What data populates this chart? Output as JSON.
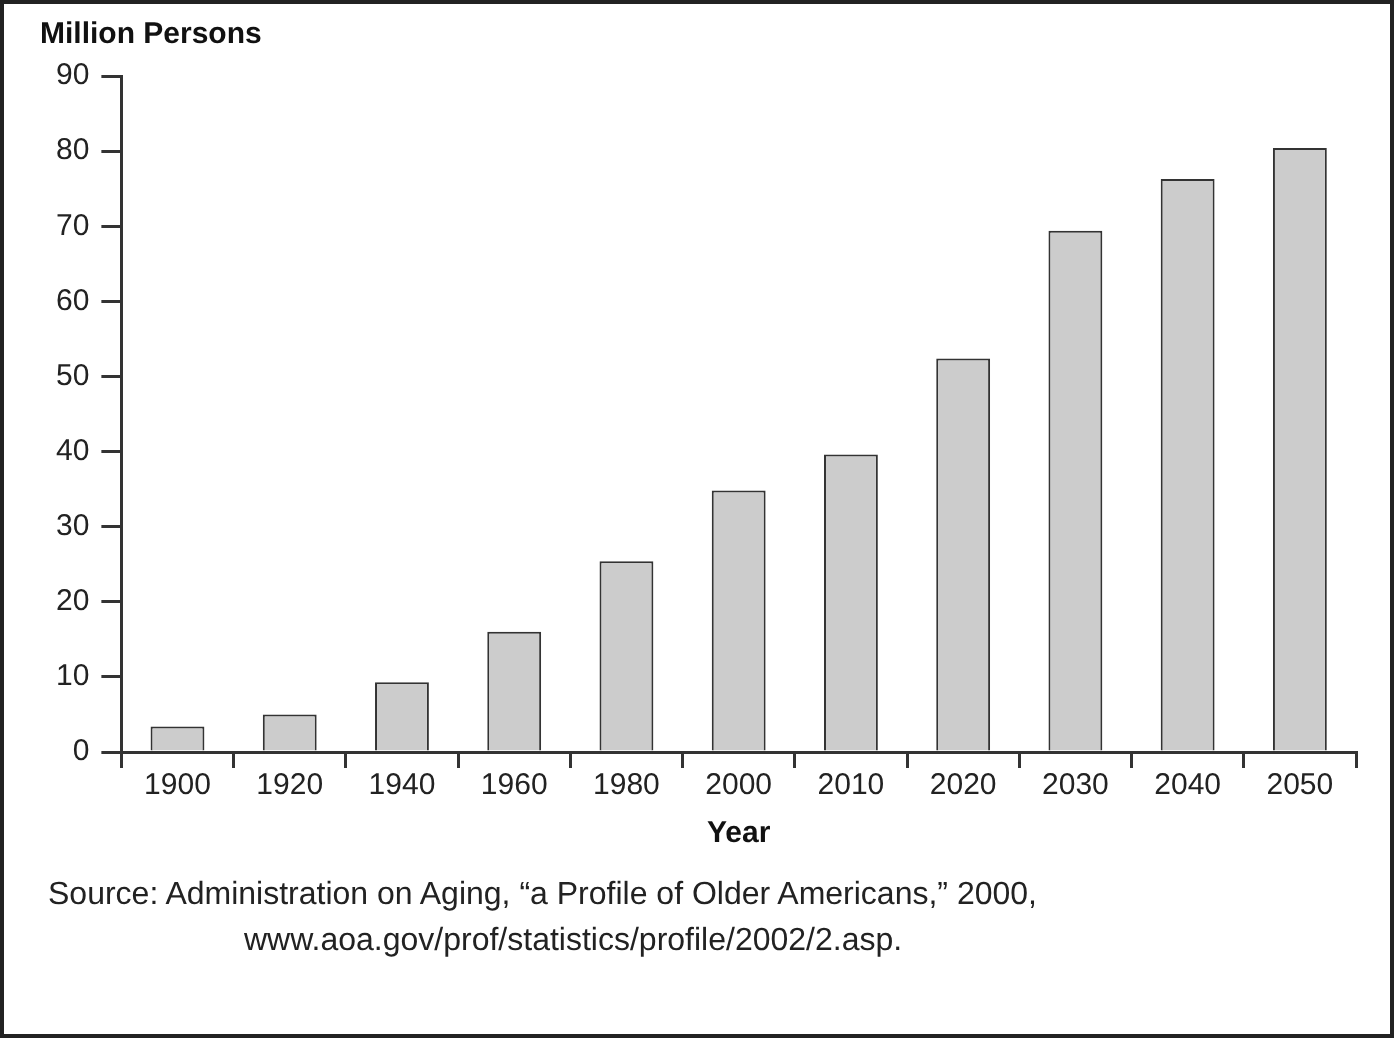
{
  "chart_data": {
    "type": "bar",
    "ylabel": "Million Persons",
    "xlabel": "Year",
    "categories": [
      "1900",
      "1920",
      "1940",
      "1960",
      "1980",
      "2000",
      "2010",
      "2020",
      "2030",
      "2040",
      "2050"
    ],
    "values": [
      3.4,
      5,
      9.3,
      16,
      25.4,
      34.8,
      39.6,
      52.4,
      69.4,
      76.3,
      80.4
    ],
    "color": "#cccccc",
    "ylim": [
      0,
      90
    ],
    "yticks": [
      0,
      10,
      20,
      30,
      40,
      50,
      60,
      70,
      80,
      90
    ],
    "grid": false,
    "legend": false,
    "annotations": [
      "Source: Administration on Aging, “a Profile of Older Americans,” 2000, www.aoa.gov/prof/statistics/profile/2002/2.asp."
    ]
  }
}
